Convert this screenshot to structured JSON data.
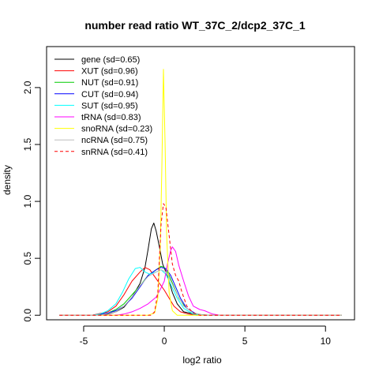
{
  "chart_data": {
    "type": "line",
    "title": "number read ratio WT_37C_2/dcp2_37C_1",
    "xlabel": "log2 ratio",
    "ylabel": "density",
    "xlim": [
      -7.3,
      11.8
    ],
    "ylim": [
      -0.04,
      2.36
    ],
    "xticks": [
      -5,
      0,
      5,
      10
    ],
    "yticks": [
      0.0,
      0.5,
      1.0,
      1.5,
      2.0
    ],
    "xtick_labels": [
      "-5",
      "0",
      "5",
      "10"
    ],
    "ytick_labels": [
      "0.0",
      "0.5",
      "1.0",
      "1.5",
      "2.0"
    ],
    "grid": false,
    "legend_position": "top-left",
    "series": [
      {
        "name": "gene (sd=0.65)",
        "color": "#000000",
        "dashed": false,
        "points": [
          [
            -6.5,
            0
          ],
          [
            -4.5,
            0
          ],
          [
            -3.5,
            0.01
          ],
          [
            -3,
            0.03
          ],
          [
            -2.5,
            0.07
          ],
          [
            -2,
            0.16
          ],
          [
            -1.5,
            0.28
          ],
          [
            -1.2,
            0.42
          ],
          [
            -1,
            0.58
          ],
          [
            -0.8,
            0.76
          ],
          [
            -0.65,
            0.81
          ],
          [
            -0.5,
            0.74
          ],
          [
            -0.3,
            0.6
          ],
          [
            -0.1,
            0.45
          ],
          [
            0.1,
            0.38
          ],
          [
            0.3,
            0.3
          ],
          [
            0.5,
            0.2
          ],
          [
            0.8,
            0.1
          ],
          [
            1.2,
            0.03
          ],
          [
            2,
            0.005
          ],
          [
            3,
            0
          ],
          [
            11,
            0
          ]
        ]
      },
      {
        "name": "XUT (sd=0.96)",
        "color": "#ff0000",
        "dashed": false,
        "points": [
          [
            -6.5,
            0
          ],
          [
            -4.5,
            0
          ],
          [
            -3.5,
            0.03
          ],
          [
            -3,
            0.08
          ],
          [
            -2.5,
            0.18
          ],
          [
            -2,
            0.3
          ],
          [
            -1.5,
            0.38
          ],
          [
            -1.2,
            0.42
          ],
          [
            -0.9,
            0.4
          ],
          [
            -0.6,
            0.34
          ],
          [
            -0.3,
            0.28
          ],
          [
            0,
            0.22
          ],
          [
            0.3,
            0.15
          ],
          [
            0.6,
            0.08
          ],
          [
            1,
            0.03
          ],
          [
            1.5,
            0.01
          ],
          [
            2,
            0
          ],
          [
            11,
            0
          ]
        ]
      },
      {
        "name": "NUT (sd=0.91)",
        "color": "#00cc00",
        "dashed": false,
        "points": [
          [
            -6.5,
            0
          ],
          [
            -4.5,
            0
          ],
          [
            -3.5,
            0.02
          ],
          [
            -3,
            0.05
          ],
          [
            -2.5,
            0.1
          ],
          [
            -2,
            0.18
          ],
          [
            -1.5,
            0.26
          ],
          [
            -1,
            0.35
          ],
          [
            -0.5,
            0.4
          ],
          [
            -0.2,
            0.43
          ],
          [
            0,
            0.42
          ],
          [
            0.3,
            0.35
          ],
          [
            0.6,
            0.25
          ],
          [
            0.9,
            0.15
          ],
          [
            1.3,
            0.07
          ],
          [
            1.8,
            0.02
          ],
          [
            2.5,
            0
          ],
          [
            11,
            0
          ]
        ]
      },
      {
        "name": "CUT (sd=0.94)",
        "color": "#0000ff",
        "dashed": false,
        "points": [
          [
            -6.5,
            0
          ],
          [
            -4.5,
            0
          ],
          [
            -4,
            0.01
          ],
          [
            -3.5,
            0.02
          ],
          [
            -3,
            0.04
          ],
          [
            -2.5,
            0.08
          ],
          [
            -2,
            0.15
          ],
          [
            -1.5,
            0.25
          ],
          [
            -1,
            0.35
          ],
          [
            -0.5,
            0.4
          ],
          [
            -0.2,
            0.42
          ],
          [
            0.1,
            0.41
          ],
          [
            0.4,
            0.35
          ],
          [
            0.7,
            0.25
          ],
          [
            1,
            0.15
          ],
          [
            1.4,
            0.06
          ],
          [
            2,
            0.01
          ],
          [
            2.5,
            0
          ],
          [
            11,
            0
          ]
        ]
      },
      {
        "name": "SUT (sd=0.95)",
        "color": "#00ffff",
        "dashed": false,
        "points": [
          [
            -6.5,
            0
          ],
          [
            -4.5,
            0
          ],
          [
            -4,
            0.01
          ],
          [
            -3.5,
            0.04
          ],
          [
            -3,
            0.1
          ],
          [
            -2.6,
            0.2
          ],
          [
            -2.2,
            0.32
          ],
          [
            -1.8,
            0.41
          ],
          [
            -1.5,
            0.42
          ],
          [
            -1.2,
            0.38
          ],
          [
            -0.9,
            0.36
          ],
          [
            -0.5,
            0.38
          ],
          [
            -0.2,
            0.4
          ],
          [
            0.1,
            0.36
          ],
          [
            0.4,
            0.27
          ],
          [
            0.8,
            0.15
          ],
          [
            1.2,
            0.06
          ],
          [
            1.8,
            0.01
          ],
          [
            2.5,
            0
          ],
          [
            11,
            0
          ]
        ]
      },
      {
        "name": "tRNA (sd=0.83)",
        "color": "#ff00ff",
        "dashed": false,
        "points": [
          [
            -6.5,
            0
          ],
          [
            -3,
            0
          ],
          [
            -2.5,
            0.01
          ],
          [
            -2,
            0.03
          ],
          [
            -1.5,
            0.06
          ],
          [
            -1,
            0.1
          ],
          [
            -0.5,
            0.16
          ],
          [
            -0.2,
            0.24
          ],
          [
            0,
            0.3
          ],
          [
            0.2,
            0.45
          ],
          [
            0.4,
            0.57
          ],
          [
            0.5,
            0.6
          ],
          [
            0.7,
            0.56
          ],
          [
            0.9,
            0.44
          ],
          [
            1.2,
            0.3
          ],
          [
            1.5,
            0.17
          ],
          [
            1.8,
            0.08
          ],
          [
            2.2,
            0.05
          ],
          [
            2.5,
            0.04
          ],
          [
            3,
            0.01
          ],
          [
            3.5,
            0
          ],
          [
            11,
            0
          ]
        ]
      },
      {
        "name": "snoRNA (sd=0.23)",
        "color": "#ffff00",
        "dashed": false,
        "points": [
          [
            -6.5,
            0
          ],
          [
            -1,
            0
          ],
          [
            -0.6,
            0.02
          ],
          [
            -0.4,
            0.15
          ],
          [
            -0.25,
            0.6
          ],
          [
            -0.15,
            1.3
          ],
          [
            -0.05,
            2.16
          ],
          [
            0.05,
            1.5
          ],
          [
            0.15,
            0.7
          ],
          [
            0.3,
            0.2
          ],
          [
            0.5,
            0.04
          ],
          [
            0.8,
            0
          ],
          [
            11,
            0
          ]
        ]
      },
      {
        "name": "ncRNA (sd=0.75)",
        "color": "#bebebe",
        "dashed": false,
        "points": [
          [
            -6.5,
            0
          ],
          [
            -4,
            0
          ],
          [
            -3,
            0.03
          ],
          [
            -2.5,
            0.08
          ],
          [
            -2,
            0.16
          ],
          [
            -1.5,
            0.26
          ],
          [
            -1,
            0.34
          ],
          [
            -0.5,
            0.38
          ],
          [
            -0.2,
            0.4
          ],
          [
            0.1,
            0.38
          ],
          [
            0.4,
            0.3
          ],
          [
            0.8,
            0.18
          ],
          [
            1.2,
            0.08
          ],
          [
            1.8,
            0.02
          ],
          [
            2.5,
            0
          ],
          [
            11,
            0
          ]
        ]
      },
      {
        "name": "snRNA (sd=0.41)",
        "color": "#ff0000",
        "dashed": true,
        "points": [
          [
            -6.5,
            0
          ],
          [
            -0.8,
            0
          ],
          [
            -0.6,
            0.03
          ],
          [
            -0.4,
            0.2
          ],
          [
            -0.3,
            0.5
          ],
          [
            -0.2,
            0.8
          ],
          [
            -0.05,
            0.98
          ],
          [
            0.1,
            0.95
          ],
          [
            0.3,
            0.7
          ],
          [
            0.5,
            0.45
          ],
          [
            0.7,
            0.35
          ],
          [
            0.9,
            0.3
          ],
          [
            1.1,
            0.2
          ],
          [
            1.4,
            0.08
          ],
          [
            1.8,
            0.02
          ],
          [
            2.2,
            0
          ],
          [
            11,
            0
          ]
        ]
      }
    ]
  }
}
